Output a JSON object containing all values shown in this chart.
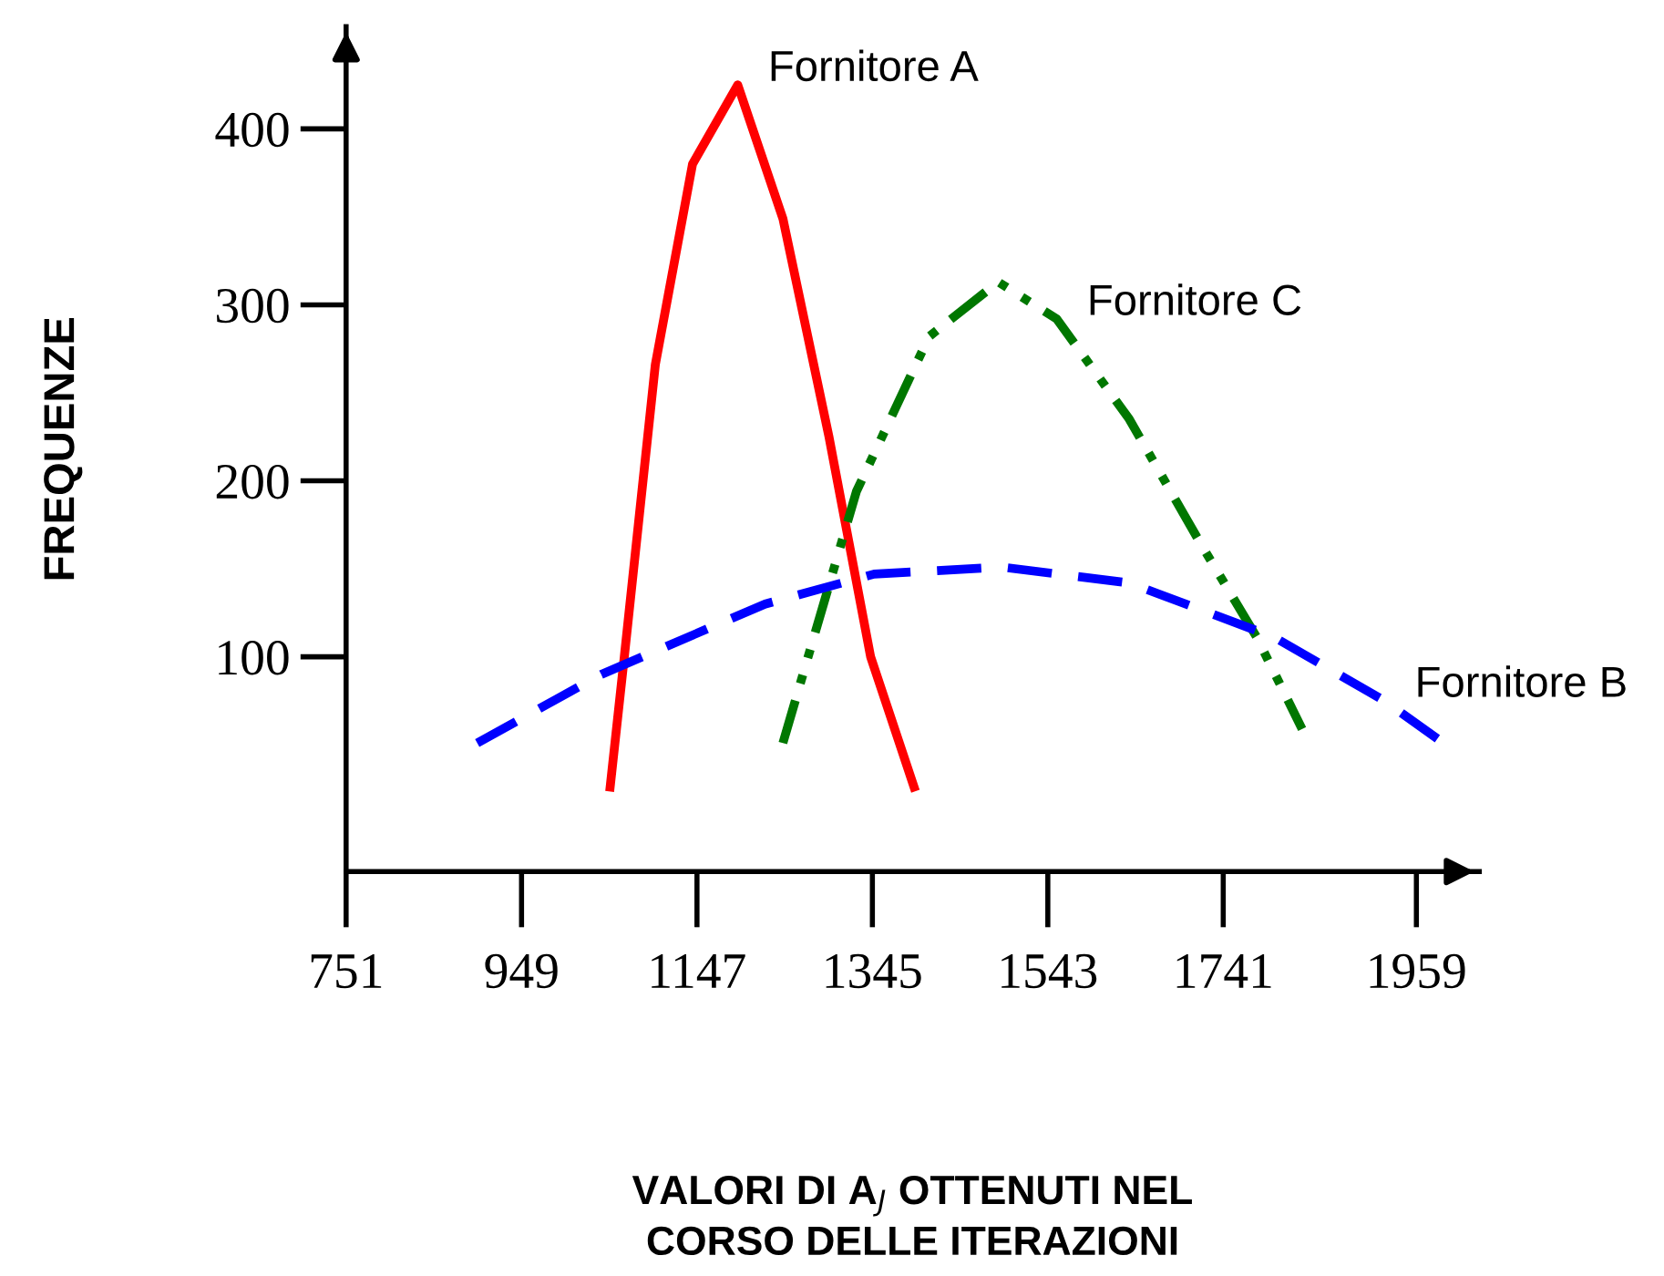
{
  "chart_data": {
    "type": "line",
    "xlabel": "VALORI DI A$_{J}$ OTTENUTI NEL\nCORSO DELLE ITERAZIONI",
    "ylabel": "FREQUENZE",
    "xlim": [
      751,
      2030
    ],
    "ylim": [
      -22,
      458
    ],
    "xticks": [
      751,
      949,
      1147,
      1345,
      1543,
      1741,
      1959
    ],
    "yticks": [
      100,
      200,
      300,
      400
    ],
    "grid": false,
    "legend": false,
    "marker": "none",
    "series": [
      {
        "name": "Fornitore A",
        "color": "#ff0000",
        "line_style": "solid",
        "x": [
          1049,
          1065,
          1100,
          1142,
          1193,
          1244,
          1296,
          1343,
          1392
        ],
        "values": [
          26,
          100,
          266,
          380,
          425,
          349,
          225,
          100,
          26
        ]
      },
      {
        "name": "Fornitore C",
        "color": "#007700",
        "line_style": "dashdot",
        "x": [
          1244,
          1327,
          1409,
          1487,
          1553,
          1635,
          1717,
          1779,
          1830
        ],
        "values": [
          51,
          194,
          282,
          313,
          292,
          235,
          163,
          111,
          59
        ]
      },
      {
        "name": "Fornitore B",
        "color": "#0000ff",
        "line_style": "dashed",
        "x": [
          899,
          1039,
          1224,
          1347,
          1491,
          1635,
          1799,
          1923,
          1984
        ],
        "values": [
          51,
          90,
          130,
          147,
          151,
          142,
          111,
          75,
          53
        ]
      }
    ]
  }
}
